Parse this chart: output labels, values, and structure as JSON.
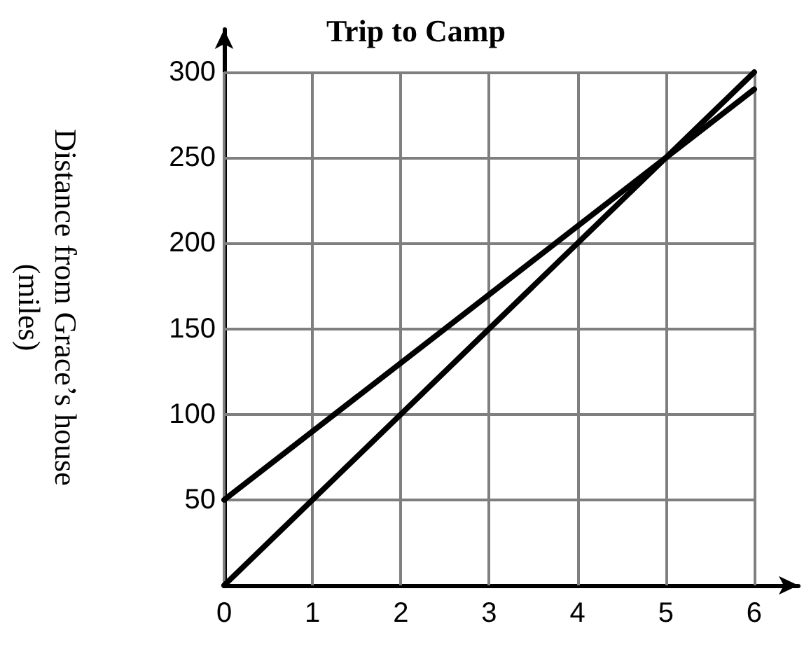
{
  "chart_data": {
    "type": "line",
    "title": "Trip to Camp",
    "ylabel": "Distance from Grace’s house\n(miles)",
    "x": [
      0,
      6
    ],
    "series": [
      {
        "color": "#000000",
        "values": [
          0,
          300
        ]
      },
      {
        "color": "#000000",
        "values": [
          50,
          290
        ]
      }
    ],
    "xlim": [
      0,
      6.5
    ],
    "xticks": [
      0,
      1,
      2,
      3,
      4,
      5,
      6
    ],
    "ylim": [
      0,
      325
    ],
    "yticks": [
      50,
      100,
      150,
      200,
      250,
      300
    ],
    "grid": true,
    "marker": "none",
    "line_style": "solid"
  }
}
